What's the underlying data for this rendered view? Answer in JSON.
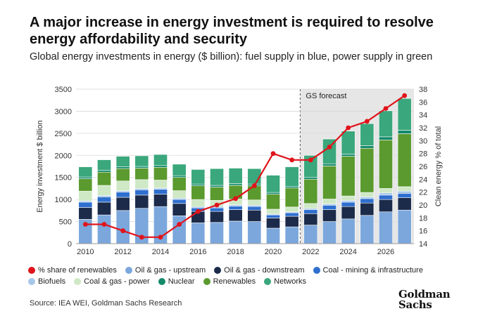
{
  "title": "A major increase in energy investment is required to resolve energy affordability and security",
  "subtitle": "Global energy investments in energy ($ billion): fuel supply in blue, power supply in green",
  "source": "Source: IEA WEI, Goldman Sachs Research",
  "logo": {
    "line1": "Goldman",
    "line2": "Sachs"
  },
  "chart_data": {
    "type": "bar",
    "stacked": true,
    "forecast_label": "GS forecast",
    "forecast_start": 2022,
    "ylabel": "Energy investment $ billion",
    "y2label": "Clean energy % of total",
    "ylim": [
      0,
      3500
    ],
    "y_ticks": [
      0,
      500,
      1000,
      1500,
      2000,
      2500,
      3000,
      3500
    ],
    "y2lim": [
      14,
      38
    ],
    "y2_ticks": [
      14,
      16,
      18,
      20,
      22,
      24,
      26,
      28,
      30,
      32,
      34,
      36,
      38
    ],
    "x_ticks": [
      2010,
      2012,
      2014,
      2016,
      2018,
      2020,
      2022,
      2024,
      2026
    ],
    "grid": true,
    "legend_position": "bottom",
    "categories": [
      2010,
      2011,
      2012,
      2013,
      2014,
      2015,
      2016,
      2017,
      2018,
      2019,
      2020,
      2021,
      2022,
      2023,
      2024,
      2025,
      2026,
      2027
    ],
    "series": [
      {
        "name": "Oil & gas - upstream",
        "color": "#7ba7dc",
        "values": [
          550,
          650,
          750,
          800,
          840,
          630,
          470,
          480,
          510,
          500,
          350,
          380,
          420,
          500,
          560,
          640,
          720,
          760
        ]
      },
      {
        "name": "Oil & gas - downstream",
        "color": "#1c2b4a",
        "values": [
          270,
          290,
          300,
          300,
          280,
          280,
          260,
          250,
          260,
          260,
          230,
          240,
          260,
          270,
          280,
          280,
          280,
          280
        ]
      },
      {
        "name": "Coal - mining & infrastructure",
        "color": "#2e6fcf",
        "values": [
          120,
          120,
          120,
          120,
          110,
          90,
          80,
          80,
          80,
          80,
          70,
          80,
          90,
          100,
          100,
          100,
          100,
          100
        ]
      },
      {
        "name": "Biofuels",
        "color": "#a7c7ea",
        "values": [
          30,
          30,
          30,
          30,
          30,
          30,
          30,
          30,
          30,
          30,
          20,
          20,
          30,
          30,
          40,
          40,
          50,
          50
        ]
      },
      {
        "name": "Coal & gas - power",
        "color": "#cfe8c6",
        "values": [
          220,
          230,
          220,
          200,
          180,
          170,
          160,
          140,
          130,
          120,
          110,
          110,
          110,
          110,
          100,
          100,
          100,
          100
        ]
      },
      {
        "name": "Renewables",
        "color": "#5b9a2e",
        "values": [
          280,
          300,
          280,
          260,
          290,
          300,
          310,
          300,
          310,
          320,
          340,
          430,
          550,
          750,
          900,
          1000,
          1100,
          1200
        ]
      },
      {
        "name": "Nuclear",
        "color": "#148a6b",
        "values": [
          40,
          40,
          40,
          40,
          40,
          40,
          40,
          40,
          40,
          40,
          40,
          40,
          40,
          50,
          50,
          60,
          70,
          80
        ]
      },
      {
        "name": "Networks",
        "color": "#3aa77c",
        "values": [
          230,
          240,
          240,
          240,
          250,
          260,
          330,
          380,
          350,
          350,
          390,
          440,
          500,
          560,
          520,
          500,
          590,
          720
        ]
      }
    ],
    "line_series": {
      "name": "% share of renewables",
      "color": "#e0141b",
      "axis": "right",
      "values": [
        17,
        17,
        16,
        15,
        15,
        17,
        19,
        20,
        21,
        23,
        28,
        27,
        27,
        29,
        32,
        33,
        35,
        37
      ]
    }
  },
  "legend": {
    "row1": [
      {
        "label": "% share of renewables",
        "color": "#e0141b"
      },
      {
        "label": "Oil & gas - upstream",
        "color": "#7ba7dc"
      },
      {
        "label": "Oil & gas - downstream",
        "color": "#1c2b4a"
      },
      {
        "label": "Coal - mining & infrastructure",
        "color": "#2e6fcf"
      }
    ],
    "row2": [
      {
        "label": "Biofuels",
        "color": "#a7c7ea"
      },
      {
        "label": "Coal & gas - power",
        "color": "#cfe8c6"
      },
      {
        "label": "Nuclear",
        "color": "#148a6b"
      },
      {
        "label": "Renewables",
        "color": "#5b9a2e"
      },
      {
        "label": "Networks",
        "color": "#3aa77c"
      }
    ]
  }
}
